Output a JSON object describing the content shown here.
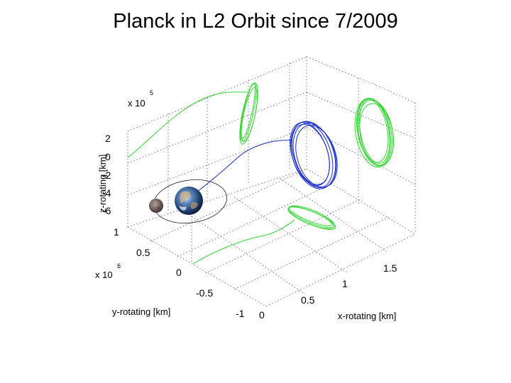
{
  "title": "Planck in L2 Orbit since 7/2009",
  "axes": {
    "z": {
      "label": "z-rotating [km]",
      "multiplier": "x 10",
      "exponent": "5",
      "ticks": [
        "2",
        "0",
        "-2",
        "-4",
        "-6"
      ]
    },
    "y": {
      "label": "y-rotating [km]",
      "multiplier": "x 10",
      "exponent": "6",
      "ticks": [
        "1",
        "0.5",
        "0",
        "-0.5",
        "-1"
      ]
    },
    "x": {
      "label": "x-rotating [km]",
      "ticks": [
        "0",
        "0.5",
        "1",
        "1.5"
      ]
    }
  },
  "colors": {
    "trajectory": "#1a2ecc",
    "projection": "#33d633",
    "grid": "#777777"
  },
  "bodies": [
    {
      "name": "earth",
      "icon": "earth-globe"
    },
    {
      "name": "moon",
      "icon": "moon-sphere"
    }
  ]
}
